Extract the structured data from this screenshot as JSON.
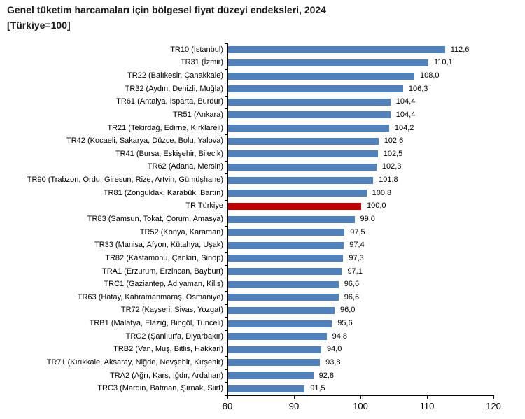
{
  "title": {
    "line1": "Genel tüketim harcamaları için bölgesel fiyat düzeyi endeksleri, 2024",
    "line2": "[Türkiye=100]"
  },
  "chart_data": {
    "type": "bar",
    "orientation": "horizontal",
    "title": "Genel tüketim harcamaları için bölgesel fiyat düzeyi endeksleri, 2024",
    "subtitle": "[Türkiye=100]",
    "categories": [
      "TR10 (İstanbul)",
      "TR31 (İzmir)",
      "TR22 (Balıkesir, Çanakkale)",
      "TR32 (Aydın, Denizli, Muğla)",
      "TR61 (Antalya, Isparta, Burdur)",
      "TR51 (Ankara)",
      "TR21 (Tekirdağ, Edirne, Kırklareli)",
      "TR42 (Kocaeli, Sakarya, Düzce, Bolu, Yalova)",
      "TR41 (Bursa, Eskişehir, Bilecik)",
      "TR62 (Adana, Mersin)",
      "TR90 (Trabzon, Ordu, Giresun, Rize, Artvin, Gümüşhane)",
      "TR81 (Zonguldak, Karabük, Bartın)",
      "TR Türkiye",
      "TR83 (Samsun, Tokat, Çorum, Amasya)",
      "TR52 (Konya, Karaman)",
      "TR33 (Manisa, Afyon, Kütahya, Uşak)",
      "TR82 (Kastamonu, Çankırı, Sinop)",
      "TRA1 (Erzurum, Erzincan, Bayburt)",
      "TRC1 (Gaziantep, Adıyaman, Kilis)",
      "TR63 (Hatay, Kahramanmaraş, Osmaniye)",
      "TR72 (Kayseri, Sivas, Yozgat)",
      "TRB1 (Malatya, Elazığ, Bingöl, Tunceli)",
      "TRC2 (Şanlıurfa, Diyarbakır)",
      "TRB2 (Van, Muş, Bitlis, Hakkari)",
      "TR71 (Kırıkkale, Aksaray, Niğde, Nevşehir, Kırşehir)",
      "TRA2 (Ağrı, Kars, Iğdır, Ardahan)",
      "TRC3 (Mardin, Batman, Şırnak, Siirt)"
    ],
    "values": [
      112.6,
      110.1,
      108.0,
      106.3,
      104.4,
      104.4,
      104.2,
      102.6,
      102.5,
      102.3,
      101.8,
      100.8,
      100.0,
      99.0,
      97.5,
      97.4,
      97.3,
      97.1,
      96.6,
      96.6,
      96.0,
      95.6,
      94.8,
      94.0,
      93.8,
      92.8,
      91.5
    ],
    "value_labels": [
      "112,6",
      "110,1",
      "108,0",
      "106,3",
      "104,4",
      "104,4",
      "104,2",
      "102,6",
      "102,5",
      "102,3",
      "101,8",
      "100,8",
      "100,0",
      "99,0",
      "97,5",
      "97,4",
      "97,3",
      "97,1",
      "96,6",
      "96,6",
      "96,0",
      "95,6",
      "94,8",
      "94,0",
      "93,8",
      "92,8",
      "91,5"
    ],
    "highlight_category": "TR Türkiye",
    "highlight_index": 12,
    "bar_color": "#4F81BD",
    "highlight_color": "#C00000",
    "axis_color": "#000000",
    "xlim": [
      80,
      120
    ],
    "x_ticks": [
      80,
      90,
      100,
      110,
      120
    ],
    "x_tick_labels": [
      "80",
      "90",
      "100",
      "110",
      "120"
    ],
    "grid": false,
    "legend": false,
    "xlabel": "",
    "ylabel": ""
  }
}
